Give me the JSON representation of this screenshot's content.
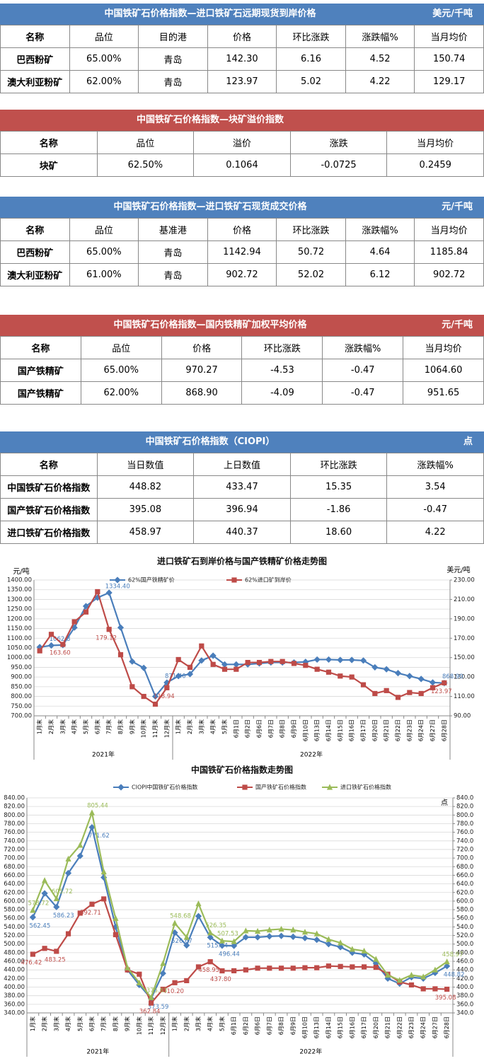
{
  "tables": [
    {
      "title": "中国铁矿石价格指数—进口铁矿石远期现货到岸价格",
      "unit": "美元/千吨",
      "color": "#4f81bd",
      "header": [
        "名称",
        "品位",
        "目的港",
        "价格",
        "环比涨跌",
        "涨跌幅%",
        "当月均价"
      ],
      "rows": [
        [
          "巴西粉矿",
          "65.00%",
          "青岛",
          "142.30",
          "6.16",
          "4.52",
          "150.74"
        ],
        [
          "澳大利亚粉矿",
          "62.00%",
          "青岛",
          "123.97",
          "5.02",
          "4.22",
          "129.17"
        ]
      ]
    },
    {
      "title": "中国铁矿石价格指数—块矿溢价指数",
      "color": "#c0504d",
      "header": [
        "名称",
        "品位",
        "溢价",
        "涨跌",
        "当月均价"
      ],
      "rows": [
        [
          "块矿",
          "62.50%",
          "0.1064",
          "-0.0725",
          "0.2459"
        ]
      ]
    },
    {
      "title": "中国铁矿石价格指数—进口铁矿石现货成交价格",
      "unit": "元/千吨",
      "color": "#4f81bd",
      "header": [
        "名称",
        "品位",
        "基准港",
        "价格",
        "环比涨跌",
        "涨跌幅%",
        "当月均价"
      ],
      "rows": [
        [
          "巴西粉矿",
          "65.00%",
          "青岛",
          "1142.94",
          "50.72",
          "4.64",
          "1185.84"
        ],
        [
          "澳大利亚粉矿",
          "61.00%",
          "青岛",
          "902.72",
          "52.02",
          "6.12",
          "902.72"
        ]
      ]
    },
    {
      "title": "中国铁矿石价格指数—国内铁精矿加权平均价格",
      "unit": "元/千吨",
      "color": "#c0504d",
      "header": [
        "名称",
        "品位",
        "价格",
        "环比涨跌",
        "涨跌幅%",
        "当月均价"
      ],
      "rows": [
        [
          "国产铁精矿",
          "65.00%",
          "970.27",
          "-4.53",
          "-0.47",
          "1064.60"
        ],
        [
          "国产铁精矿",
          "62.00%",
          "868.90",
          "-4.09",
          "-0.47",
          "951.65"
        ]
      ]
    },
    {
      "title": "中国铁矿石价格指数（CIOPI）",
      "unit": "点",
      "color": "#4f81bd",
      "header": [
        "名称",
        "当日数值",
        "上日数值",
        "环比涨跌",
        "涨跌幅%"
      ],
      "rows": [
        [
          "中国铁矿石价格指数",
          "448.82",
          "433.47",
          "15.35",
          "3.54"
        ],
        [
          "国产铁矿石价格指数",
          "395.08",
          "396.94",
          "-1.86",
          "-0.47"
        ],
        [
          "进口铁矿石价格指数",
          "458.97",
          "440.37",
          "18.60",
          "4.22"
        ]
      ]
    }
  ],
  "chart_data": [
    {
      "type": "line",
      "title": "进口铁矿石到岸价格与国产铁精矿价格走势图",
      "ylabel": "元/吨",
      "y2label": "美元/吨",
      "grid": true,
      "categories": [
        "1月末",
        "2月末",
        "3月末",
        "4月末",
        "5月末",
        "6月末",
        "7月末",
        "8月末",
        "9月末",
        "10月末",
        "11月末",
        "12月末",
        "1月末",
        "2月末",
        "3月末",
        "4月末",
        "5月末",
        "6月1日",
        "6月2日",
        "6月6日",
        "6月7日",
        "6月8日",
        "6月9日",
        "6月10日",
        "6月13日",
        "6月14日",
        "6月15日",
        "6月16日",
        "6月17日",
        "6月20日",
        "6月21日",
        "6月22日",
        "6月23日",
        "6月24日",
        "6月27日",
        "6月28日"
      ],
      "groups": [
        "2021年",
        "2022年"
      ],
      "ylim": [
        700,
        1400
      ],
      "yticks": [
        {
          "value": 700,
          "label": "700.00"
        },
        {
          "value": 750,
          "label": "750.00"
        },
        {
          "value": 800,
          "label": "800.00"
        },
        {
          "value": 850,
          "label": "850.00"
        },
        {
          "value": 900,
          "label": "900.00"
        },
        {
          "value": 950,
          "label": "950.00"
        },
        {
          "value": 1000,
          "label": "1000.00"
        },
        {
          "value": 1050,
          "label": "1050.00"
        },
        {
          "value": 1100,
          "label": "1100.00"
        },
        {
          "value": 1150,
          "label": "1150.00"
        },
        {
          "value": 1200,
          "label": "1200.00"
        },
        {
          "value": 1250,
          "label": "1250.00"
        },
        {
          "value": 1300,
          "label": "1300.00"
        },
        {
          "value": 1350,
          "label": "1350.00"
        },
        {
          "value": 1400,
          "label": "1400.00"
        }
      ],
      "y2lim": [
        90,
        230
      ],
      "y2ticks": [
        {
          "value": 90,
          "label": "90.00"
        },
        {
          "value": 110,
          "label": "110.00"
        },
        {
          "value": 130,
          "label": "130.00"
        },
        {
          "value": 150,
          "label": "150.00"
        },
        {
          "value": 170,
          "label": "170.00"
        },
        {
          "value": 190,
          "label": "190.00"
        },
        {
          "value": 210,
          "label": "210.00"
        },
        {
          "value": 230,
          "label": "230.00"
        }
      ],
      "series": [
        {
          "name": "62%国产铁精矿价",
          "color": "#4a7ebb",
          "marker": "diamond",
          "values": [
            1054,
            1062.8,
            1065,
            1155,
            1265,
            1309,
            1334.4,
            1155,
            980,
            947,
            800,
            871.4,
            905,
            915,
            985,
            1010,
            965,
            965,
            965,
            970,
            975,
            975,
            975,
            978,
            990,
            990,
            988,
            988,
            985,
            950,
            940,
            920,
            905,
            890,
            872,
            868.9
          ],
          "value_labels": [
            null,
            "1062.8",
            null,
            null,
            null,
            null,
            "1334.40",
            null,
            null,
            null,
            null,
            "871.40",
            null,
            null,
            null,
            null,
            null,
            null,
            null,
            null,
            null,
            null,
            null,
            null,
            null,
            null,
            null,
            null,
            null,
            null,
            null,
            null,
            null,
            null,
            null,
            "868.90"
          ]
        },
        {
          "name": "62%进口矿到岸价",
          "color": "#be4b48",
          "marker": "square",
          "axis": "y2",
          "values": [
            157,
            174,
            163.6,
            187,
            197,
            218,
            179.12,
            153,
            120,
            110,
            102,
            118.94,
            148,
            140,
            162,
            143,
            138,
            138,
            145,
            145,
            146,
            146,
            144,
            142,
            138,
            135,
            131,
            130,
            122,
            113,
            116,
            109,
            114,
            113,
            119,
            123.97
          ],
          "value_labels": [
            null,
            null,
            "163.60",
            null,
            null,
            null,
            "179.12",
            null,
            null,
            null,
            null,
            "118.94",
            null,
            null,
            null,
            null,
            null,
            null,
            null,
            null,
            null,
            null,
            null,
            null,
            null,
            null,
            null,
            null,
            null,
            null,
            null,
            null,
            null,
            null,
            null,
            "123.97"
          ]
        }
      ]
    },
    {
      "type": "line",
      "title": "中国铁矿石价格指数走势图",
      "y2label": "点",
      "grid": true,
      "categories": [
        "1月末",
        "2月末",
        "3月末",
        "4月末",
        "5月末",
        "6月末",
        "7月末",
        "8月末",
        "9月末",
        "10月末",
        "11月末",
        "12月末",
        "1月末",
        "2月末",
        "3月末",
        "4月末",
        "5月末",
        "6月1日",
        "6月2日",
        "6月6日",
        "6月7日",
        "6月8日",
        "6月9日",
        "6月10日",
        "6月13日",
        "6月14日",
        "6月15日",
        "6月16日",
        "6月17日",
        "6月20日",
        "6月21日",
        "6月22日",
        "6月23日",
        "6月24日",
        "6月27日",
        "6月28日"
      ],
      "groups": [
        "2021年",
        "2022年"
      ],
      "ylim": [
        340,
        840
      ],
      "yticks": [
        {
          "value": 340,
          "label": "340.00"
        },
        {
          "value": 360,
          "label": "360.00"
        },
        {
          "value": 380,
          "label": "380.00"
        },
        {
          "value": 400,
          "label": "400.00"
        },
        {
          "value": 420,
          "label": "420.00"
        },
        {
          "value": 440,
          "label": "440.00"
        },
        {
          "value": 460,
          "label": "460.00"
        },
        {
          "value": 480,
          "label": "480.00"
        },
        {
          "value": 500,
          "label": "500.00"
        },
        {
          "value": 520,
          "label": "520.00"
        },
        {
          "value": 540,
          "label": "540.00"
        },
        {
          "value": 560,
          "label": "560.00"
        },
        {
          "value": 580,
          "label": "580.00"
        },
        {
          "value": 600,
          "label": "600.00"
        },
        {
          "value": 620,
          "label": "620.00"
        },
        {
          "value": 640,
          "label": "640.00"
        },
        {
          "value": 660,
          "label": "660.00"
        },
        {
          "value": 680,
          "label": "680.00"
        },
        {
          "value": 700,
          "label": "700.00"
        },
        {
          "value": 720,
          "label": "720.00"
        },
        {
          "value": 740,
          "label": "740.00"
        },
        {
          "value": 760,
          "label": "760.00"
        },
        {
          "value": 780,
          "label": "780.00"
        },
        {
          "value": 800,
          "label": "800.00"
        },
        {
          "value": 820,
          "label": "820.00"
        },
        {
          "value": 840,
          "label": "840.00"
        }
      ],
      "y2lim": [
        340,
        840
      ],
      "y2ticks": [
        {
          "value": 340,
          "label": "340.0"
        },
        {
          "value": 360,
          "label": "360.0"
        },
        {
          "value": 380,
          "label": "380.0"
        },
        {
          "value": 400,
          "label": "400.0"
        },
        {
          "value": 420,
          "label": "420.0"
        },
        {
          "value": 440,
          "label": "440.0"
        },
        {
          "value": 460,
          "label": "460.0"
        },
        {
          "value": 480,
          "label": "480.0"
        },
        {
          "value": 500,
          "label": "500.0"
        },
        {
          "value": 520,
          "label": "520.0"
        },
        {
          "value": 540,
          "label": "540.0"
        },
        {
          "value": 560,
          "label": "560.0"
        },
        {
          "value": 580,
          "label": "580.0"
        },
        {
          "value": 600,
          "label": "600.0"
        },
        {
          "value": 620,
          "label": "620.0"
        },
        {
          "value": 640,
          "label": "640.0"
        },
        {
          "value": 660,
          "label": "660.0"
        },
        {
          "value": 680,
          "label": "680.0"
        },
        {
          "value": 700,
          "label": "700.0"
        },
        {
          "value": 720,
          "label": "720.0"
        },
        {
          "value": 740,
          "label": "740.0"
        },
        {
          "value": 760,
          "label": "760.0"
        },
        {
          "value": 780,
          "label": "780.0"
        },
        {
          "value": 800,
          "label": "800.0"
        },
        {
          "value": 820,
          "label": "820.0"
        },
        {
          "value": 840,
          "label": "840.0"
        }
      ],
      "series": [
        {
          "name": "CIOPI中国铁矿石价格指数",
          "color": "#4a7ebb",
          "marker": "diamond",
          "values": [
            562.45,
            618,
            586.23,
            665,
            705,
            771.62,
            655,
            540,
            440,
            405,
            373.59,
            432,
            526.67,
            497,
            565,
            515.64,
            496.44,
            496,
            516,
            516,
            518,
            519,
            517,
            514,
            510,
            500,
            493,
            480,
            476,
            455,
            420,
            408,
            423,
            420,
            433,
            448.82
          ],
          "value_labels": [
            "562.45",
            null,
            "586.23",
            null,
            null,
            "771.62",
            null,
            null,
            null,
            null,
            "373.59",
            null,
            "526.67",
            null,
            null,
            "515.64",
            "496.44",
            null,
            null,
            null,
            null,
            null,
            null,
            null,
            null,
            null,
            null,
            null,
            null,
            null,
            null,
            null,
            null,
            null,
            null,
            "448.82"
          ]
        },
        {
          "name": "国产铁矿石价格指数",
          "color": "#be4b48",
          "marker": "square",
          "values": [
            476.42,
            490,
            483.25,
            524,
            572,
            592.71,
            605,
            522,
            440,
            430,
            362.84,
            395,
            410.2,
            415,
            447,
            458.95,
            437.8,
            438,
            440,
            444,
            444,
            444,
            444,
            445,
            445,
            449,
            448,
            447,
            447,
            446,
            430,
            412,
            405,
            396,
            396,
            395.08
          ],
          "value_labels": [
            "476.42",
            null,
            "483.25",
            null,
            null,
            "592.71",
            null,
            null,
            null,
            null,
            "362.84",
            null,
            "410.20",
            null,
            null,
            "458.95",
            "437.80",
            null,
            null,
            null,
            null,
            null,
            null,
            null,
            null,
            null,
            null,
            null,
            null,
            null,
            null,
            null,
            null,
            null,
            null,
            "395.08"
          ]
        },
        {
          "name": "进口铁矿石价格指数",
          "color": "#9bbb59",
          "marker": "triangle",
          "values": [
            578.72,
            648,
            605.72,
            698,
            730,
            805.44,
            668,
            560,
            445,
            410,
            375.63,
            455,
            548.68,
            516,
            594,
            526.35,
            507.53,
            506,
            531,
            530,
            533,
            535,
            533,
            528,
            524,
            511,
            503,
            488,
            484,
            465,
            428,
            416,
            428,
            424,
            440,
            458.97
          ],
          "value_labels": [
            "578.72",
            null,
            "605.72",
            null,
            null,
            "805.44",
            null,
            null,
            null,
            null,
            "375.63",
            null,
            "548.68",
            null,
            null,
            "526.35",
            "507.53",
            null,
            null,
            null,
            null,
            null,
            null,
            null,
            null,
            null,
            null,
            null,
            null,
            null,
            null,
            null,
            null,
            null,
            null,
            "458.97"
          ]
        }
      ]
    }
  ]
}
